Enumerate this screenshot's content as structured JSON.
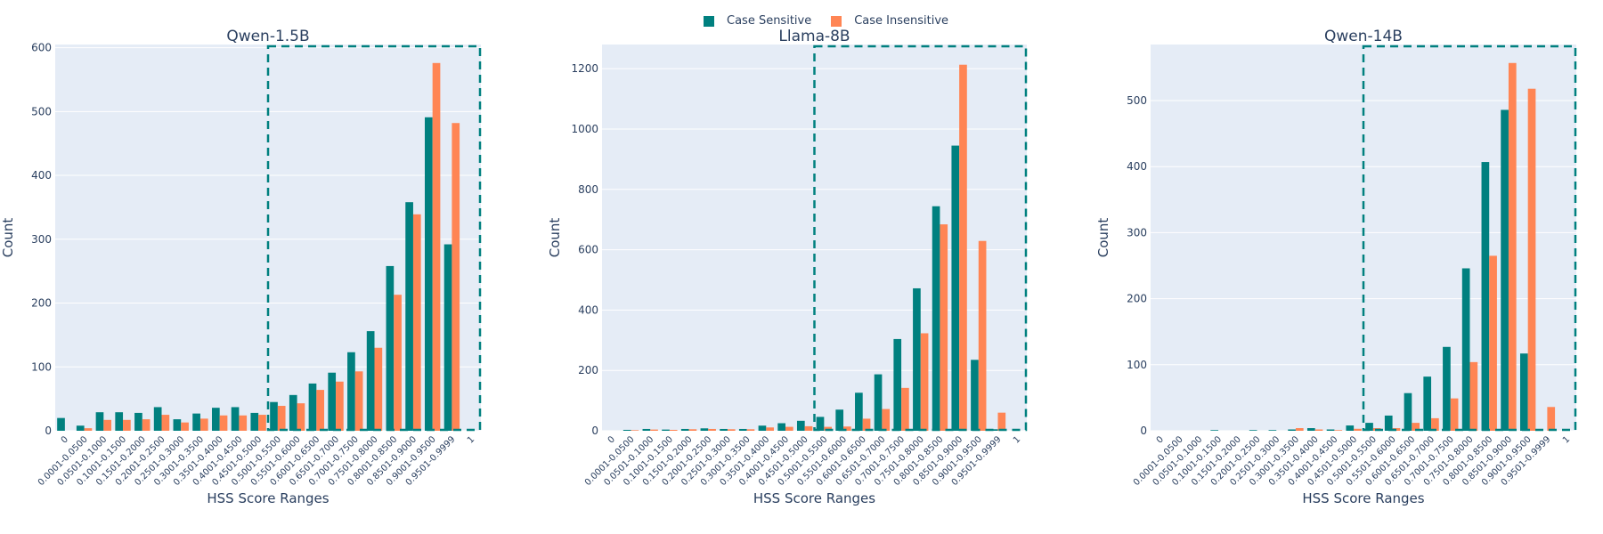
{
  "legend": {
    "series": [
      {
        "name": "Case Sensitive",
        "color": "#00807f"
      },
      {
        "name": "Case Insensitive",
        "color": "#ff8554"
      }
    ]
  },
  "chart_data": [
    {
      "type": "bar",
      "title": "Qwen-1.5B",
      "xlabel": "HSS Score Ranges",
      "ylabel": "Count",
      "ylim": [
        0,
        605
      ],
      "yticks": [
        0,
        100,
        200,
        300,
        400,
        500,
        600
      ],
      "highlight_from_category": "0.5001-0.5500",
      "categories": [
        "0",
        "0.0001-0.0500",
        "0.0501-0.1000",
        "0.1001-0.1500",
        "0.1501-0.2000",
        "0.2001-0.2500",
        "0.2501-0.3000",
        "0.3001-0.3500",
        "0.3501-0.4000",
        "0.4001-0.4500",
        "0.4501-0.5000",
        "0.5001-0.5500",
        "0.5501-0.6000",
        "0.6001-0.6500",
        "0.6501-0.7000",
        "0.7001-0.7500",
        "0.7501-0.8000",
        "0.8001-0.8500",
        "0.8501-0.9000",
        "0.9001-0.9500",
        "0.9501-0.9999",
        "1"
      ],
      "series": [
        {
          "name": "Case Sensitive",
          "values": [
            20,
            8,
            29,
            29,
            28,
            37,
            18,
            27,
            36,
            37,
            28,
            45,
            56,
            74,
            91,
            123,
            156,
            258,
            358,
            491,
            292,
            0
          ]
        },
        {
          "name": "Case Insensitive",
          "values": [
            0,
            4,
            17,
            17,
            18,
            25,
            13,
            19,
            24,
            24,
            25,
            39,
            43,
            64,
            77,
            93,
            130,
            213,
            339,
            576,
            482,
            0
          ]
        }
      ]
    },
    {
      "type": "bar",
      "title": "Llama-8B",
      "xlabel": "HSS Score Ranges",
      "ylabel": "Count",
      "ylim": [
        0,
        1280
      ],
      "yticks": [
        0,
        200,
        400,
        600,
        800,
        1000,
        1200
      ],
      "highlight_from_category": "0.5001-0.5500",
      "categories": [
        "0",
        "0.0001-0.0500",
        "0.0501-0.1000",
        "0.1001-0.1500",
        "0.1501-0.2000",
        "0.2001-0.2500",
        "0.2501-0.3000",
        "0.3001-0.3500",
        "0.3501-0.4000",
        "0.4001-0.4500",
        "0.4501-0.5000",
        "0.5001-0.5500",
        "0.5501-0.6000",
        "0.6001-0.6500",
        "0.6501-0.7000",
        "0.7001-0.7500",
        "0.7501-0.8000",
        "0.8001-0.8500",
        "0.8501-0.9000",
        "0.9001-0.9500",
        "0.9501-0.9999",
        "1"
      ],
      "series": [
        {
          "name": "Case Sensitive",
          "values": [
            0,
            3,
            6,
            4,
            6,
            8,
            6,
            6,
            17,
            25,
            33,
            46,
            70,
            126,
            187,
            304,
            472,
            744,
            945,
            235,
            5,
            0
          ]
        },
        {
          "name": "Case Insensitive",
          "values": [
            0,
            2,
            4,
            3,
            5,
            6,
            5,
            5,
            11,
            13,
            15,
            13,
            14,
            40,
            72,
            142,
            323,
            684,
            1213,
            629,
            60,
            0
          ]
        }
      ]
    },
    {
      "type": "bar",
      "title": "Qwen-14B",
      "xlabel": "HSS Score Ranges",
      "ylabel": "Count",
      "ylim": [
        0,
        585
      ],
      "yticks": [
        0,
        100,
        200,
        300,
        400,
        500
      ],
      "highlight_from_category": "0.5001-0.5500",
      "categories": [
        "0",
        "0.0001-0.0500",
        "0.0501-0.1000",
        "0.1001-0.1500",
        "0.1501-0.2000",
        "0.2001-0.2500",
        "0.2501-0.3000",
        "0.3001-0.3500",
        "0.3501-0.4000",
        "0.4001-0.4500",
        "0.4501-0.5000",
        "0.5001-0.5500",
        "0.5501-0.6000",
        "0.6001-0.6500",
        "0.6501-0.7000",
        "0.7001-0.7500",
        "0.7501-0.8000",
        "0.8001-0.8500",
        "0.8501-0.9000",
        "0.9001-0.9500",
        "0.9501-0.9999",
        "1"
      ],
      "series": [
        {
          "name": "Case Sensitive",
          "values": [
            0,
            0,
            0,
            1,
            0,
            1,
            1,
            2,
            4,
            2,
            8,
            12,
            23,
            57,
            82,
            127,
            246,
            407,
            486,
            117,
            0,
            0
          ]
        },
        {
          "name": "Case Insensitive",
          "values": [
            0,
            0,
            0,
            0,
            0,
            0,
            0,
            4,
            2,
            1,
            3,
            4,
            4,
            12,
            19,
            49,
            104,
            265,
            557,
            518,
            36,
            0
          ]
        }
      ]
    }
  ]
}
